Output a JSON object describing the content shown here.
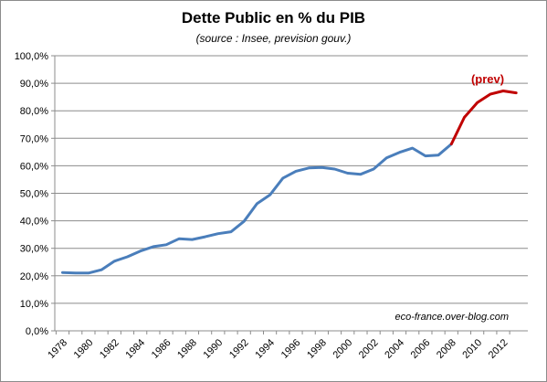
{
  "chart_data": {
    "type": "line",
    "title": "Dette Public en % du PIB",
    "subtitle": "(source : Insee, prevision gouv.)",
    "xlabel": "",
    "ylabel": "",
    "ylim": [
      0,
      100
    ],
    "y_ticks": [
      "0,0%",
      "10,0%",
      "20,0%",
      "30,0%",
      "40,0%",
      "50,0%",
      "60,0%",
      "70,0%",
      "80,0%",
      "90,0%",
      "100,0%"
    ],
    "x_ticks": [
      "1978",
      "1980",
      "1982",
      "1984",
      "1986",
      "1988",
      "1990",
      "1992",
      "1994",
      "1996",
      "1998",
      "2000",
      "2002",
      "2004",
      "2006",
      "2008",
      "2010",
      "2012"
    ],
    "grid": true,
    "series": [
      {
        "name": "",
        "color": "#4a7ebb",
        "x": [
          1978,
          1979,
          1980,
          1981,
          1982,
          1983,
          1984,
          1985,
          1986,
          1987,
          1988,
          1989,
          1990,
          1991,
          1992,
          1993,
          1994,
          1995,
          1996,
          1997,
          1998,
          1999,
          2000,
          2001,
          2002,
          2003,
          2004,
          2005,
          2006,
          2007,
          2008
        ],
        "y": [
          21.2,
          21.0,
          21.0,
          22.2,
          25.3,
          26.9,
          29.0,
          30.6,
          31.3,
          33.5,
          33.2,
          34.2,
          35.3,
          36.0,
          39.8,
          46.2,
          49.4,
          55.5,
          58.0,
          59.2,
          59.4,
          58.8,
          57.3,
          56.9,
          58.8,
          62.9,
          64.9,
          66.4,
          63.6,
          63.9,
          67.9
        ]
      },
      {
        "name": "",
        "color": "#c00000",
        "x": [
          2008,
          2009,
          2010,
          2011,
          2012,
          2013
        ],
        "y": [
          67.9,
          77.6,
          83.0,
          86.0,
          87.2,
          86.5
        ]
      }
    ],
    "annotations": [
      "(prev)",
      "eco-france.over-blog.com"
    ]
  }
}
